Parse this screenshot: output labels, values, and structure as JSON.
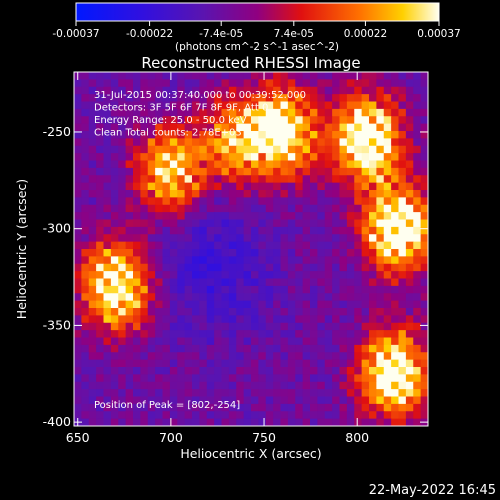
{
  "chart_data": {
    "type": "heatmap",
    "title": "Reconstructed RHESSI Image",
    "xlabel": "Heliocentric X (arcsec)",
    "ylabel": "Heliocentric Y (arcsec)",
    "xlim": [
      648,
      838
    ],
    "ylim": [
      -402,
      -219
    ],
    "x_ticks": [
      650,
      700,
      750,
      800
    ],
    "x_tick_labels": [
      "650",
      "700",
      "750",
      "800"
    ],
    "y_ticks": [
      -250,
      -300,
      -350,
      -400
    ],
    "y_tick_labels": [
      "-250",
      "-300",
      "-350",
      "-400"
    ],
    "colorbar": {
      "range": [
        -0.00037,
        0.00037
      ],
      "ticks": [
        -0.00037,
        -0.00022,
        -7.4e-05,
        7.4e-05,
        0.00022,
        0.00037
      ],
      "tick_labels": [
        "-0.00037",
        "-0.00022",
        "-7.4e-05",
        "7.4e-05",
        "0.00022",
        "0.00037"
      ],
      "unit_label": "(photons cm^-2 s^-1 asec^-2)"
    },
    "annotations": [
      "31-Jul-2015 00:37:40.000 to 00:39:52.000",
      "Detectors: 3F 5F 6F 7F 8F 9F, Att 0",
      "Energy Range: 25.0 - 50.0 keV",
      "Clean     Total counts: 2.78E+03"
    ],
    "peak_label": "Position of Peak = [802,-254]",
    "peak": [
      802,
      -254
    ],
    "hot_regions": [
      {
        "x": 760,
        "y": -250,
        "intensity": 0.9
      },
      {
        "x": 805,
        "y": -254,
        "intensity": 1.0
      },
      {
        "x": 822,
        "y": -300,
        "intensity": 1.0
      },
      {
        "x": 670,
        "y": -330,
        "intensity": 0.9
      },
      {
        "x": 820,
        "y": -375,
        "intensity": 1.0
      },
      {
        "x": 700,
        "y": -270,
        "intensity": 0.75
      },
      {
        "x": 735,
        "y": -255,
        "intensity": 0.6
      }
    ]
  },
  "timestamp": "22-May-2022 16:45"
}
